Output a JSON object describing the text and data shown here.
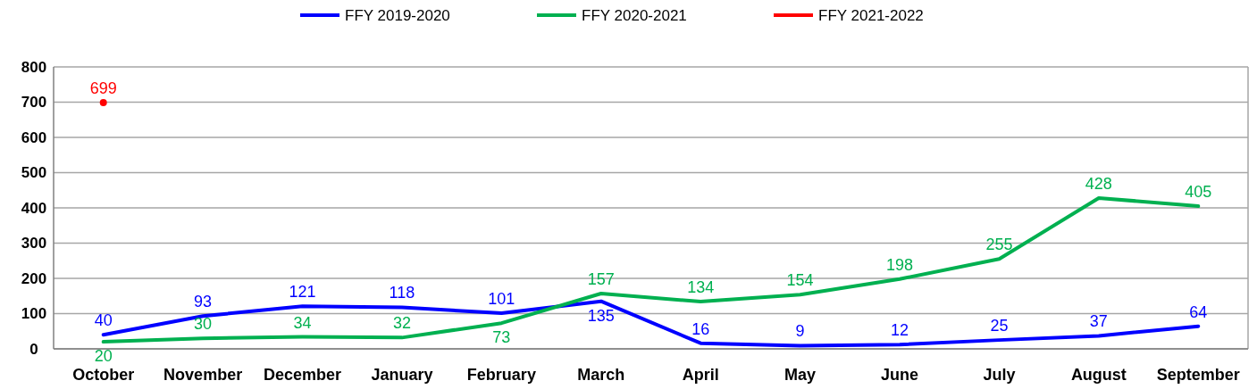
{
  "chart_data": {
    "type": "line",
    "categories": [
      "October",
      "November",
      "December",
      "January",
      "February",
      "March",
      "April",
      "May",
      "June",
      "July",
      "August",
      "September"
    ],
    "series": [
      {
        "name": "FFY 2019-2020",
        "color": "#0000ff",
        "values": [
          40,
          93,
          121,
          118,
          101,
          135,
          16,
          9,
          12,
          25,
          37,
          64
        ]
      },
      {
        "name": "FFY 2020-2021",
        "color": "#00b050",
        "values": [
          20,
          30,
          34,
          32,
          73,
          157,
          134,
          154,
          198,
          255,
          428,
          405
        ]
      },
      {
        "name": "FFY 2021-2022",
        "color": "#ff0000",
        "marker": "circle",
        "values": [
          699,
          null,
          null,
          null,
          null,
          null,
          null,
          null,
          null,
          null,
          null,
          null
        ]
      }
    ],
    "ylim": [
      0,
      800
    ],
    "yticks": [
      0,
      100,
      200,
      300,
      400,
      500,
      600,
      700,
      800
    ],
    "grid": "y",
    "legend": "top",
    "data_labels": true,
    "marker": "none"
  }
}
